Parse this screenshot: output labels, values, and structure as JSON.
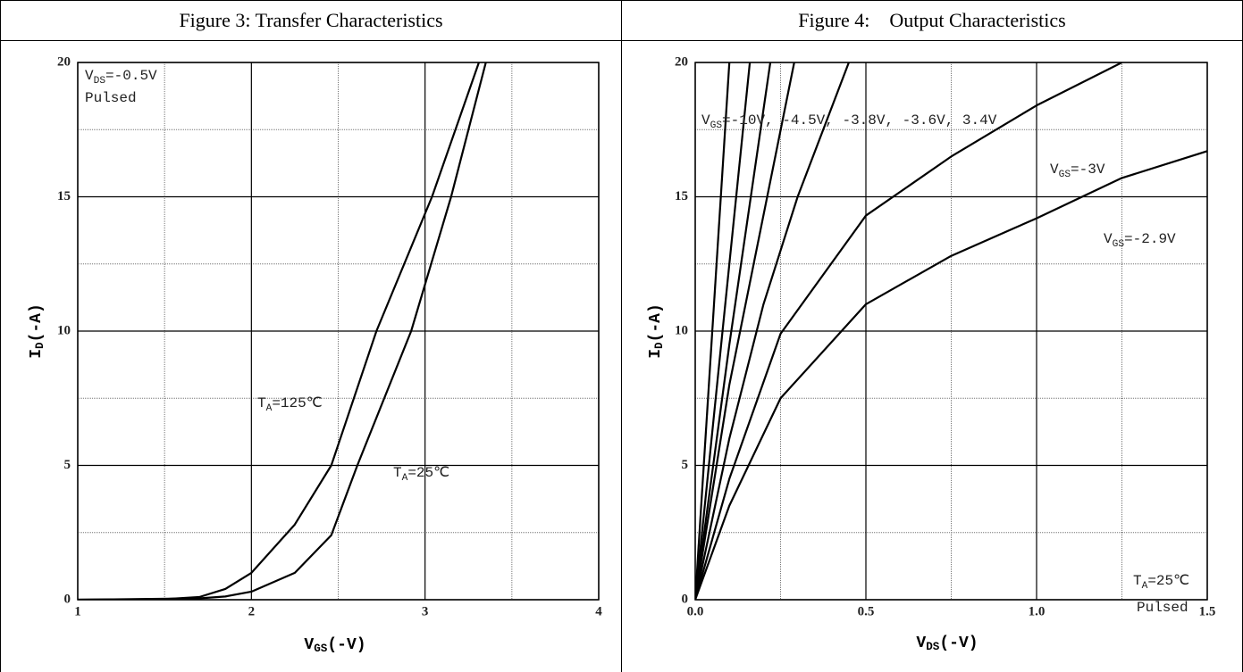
{
  "chart_data": [
    {
      "type": "line",
      "title": "Figure 3: Transfer Characteristics",
      "xlabel": {
        "text": "V",
        "sub": "GS",
        "rest": "(-V)"
      },
      "ylabel": {
        "text": "I",
        "sub": "D",
        "rest": "(-A)"
      },
      "xlim": [
        1,
        4
      ],
      "xticks": [
        1,
        2,
        3,
        4
      ],
      "xminor": [
        1.5,
        2.5,
        3.5
      ],
      "ylim": [
        0,
        20
      ],
      "yticks": [
        0,
        5,
        10,
        15,
        20
      ],
      "yminor": [
        2.5,
        7.5,
        12.5,
        17.5
      ],
      "series": [
        {
          "color": "#000000",
          "x": [
            1,
            1.5,
            1.7,
            1.85,
            2.0,
            2.25,
            2.46,
            2.72,
            3.04,
            3.31
          ],
          "values": [
            0,
            0.02,
            0.1,
            0.4,
            1.0,
            2.8,
            5,
            10,
            15,
            20
          ]
        },
        {
          "color": "#000000",
          "x": [
            1,
            1.7,
            1.85,
            2.0,
            2.25,
            2.46,
            2.61,
            2.92,
            3.15,
            3.35
          ],
          "values": [
            0,
            0.05,
            0.12,
            0.3,
            1.0,
            2.4,
            5,
            10,
            15,
            20
          ]
        }
      ],
      "annotations": [
        {
          "text": "V",
          "sub": "DS",
          "rest": "=-0.5V"
        },
        "Pulsed",
        {
          "text": "T",
          "sub": "A",
          "rest": "=125℃"
        },
        {
          "text": "T",
          "sub": "A",
          "rest": "=25℃"
        }
      ]
    },
    {
      "type": "line",
      "title": "Figure 4:    Output Characteristics",
      "xlabel": {
        "text": "V",
        "sub": "DS",
        "rest": "(-V)"
      },
      "ylabel": {
        "text": "I",
        "sub": "D",
        "rest": "(-A)"
      },
      "xlim": [
        0,
        1.5
      ],
      "xticks": [
        {
          "value": 0,
          "label": "0.0"
        },
        0.5,
        {
          "value": 1,
          "label": "1.0"
        },
        1.5
      ],
      "xminor": [
        0.25,
        0.75,
        1.25
      ],
      "ylim": [
        0,
        20
      ],
      "yticks": [
        0,
        5,
        10,
        15,
        20
      ],
      "yminor": [
        2.5,
        7.5,
        12.5,
        17.5
      ],
      "series": [
        {
          "color": "#000000",
          "x": [
            0,
            0.1
          ],
          "values": [
            0,
            20
          ]
        },
        {
          "color": "#000000",
          "x": [
            0,
            0.16
          ],
          "values": [
            0,
            20
          ]
        },
        {
          "color": "#000000",
          "x": [
            0,
            0.1,
            0.22
          ],
          "values": [
            0,
            9.5,
            20
          ]
        },
        {
          "color": "#000000",
          "x": [
            0,
            0.1,
            0.29
          ],
          "values": [
            0,
            8,
            20
          ]
        },
        {
          "color": "#000000",
          "x": [
            0,
            0.1,
            0.2,
            0.3,
            0.45
          ],
          "values": [
            0,
            6,
            11,
            15,
            20
          ]
        },
        {
          "color": "#000000",
          "x": [
            0,
            0.1,
            0.25,
            0.5,
            0.75,
            1.0,
            1.25
          ],
          "values": [
            0,
            4.5,
            9.9,
            14.3,
            16.5,
            18.4,
            20
          ]
        },
        {
          "color": "#000000",
          "x": [
            0,
            0.1,
            0.25,
            0.5,
            0.75,
            1.0,
            1.25,
            1.5
          ],
          "values": [
            0,
            3.5,
            7.5,
            11,
            12.8,
            14.2,
            15.7,
            16.7
          ]
        }
      ],
      "annotations": [
        {
          "text": "V",
          "sub": "GS",
          "rest": "=-10V, -4.5V, -3.8V, -3.6V, 3.4V"
        },
        {
          "text": "V",
          "sub": "GS",
          "rest": "=-3V"
        },
        {
          "text": "V",
          "sub": "GS",
          "rest": "=-2.9V"
        },
        {
          "text": "T",
          "sub": "A",
          "rest": "=25℃"
        },
        "Pulsed"
      ]
    }
  ]
}
